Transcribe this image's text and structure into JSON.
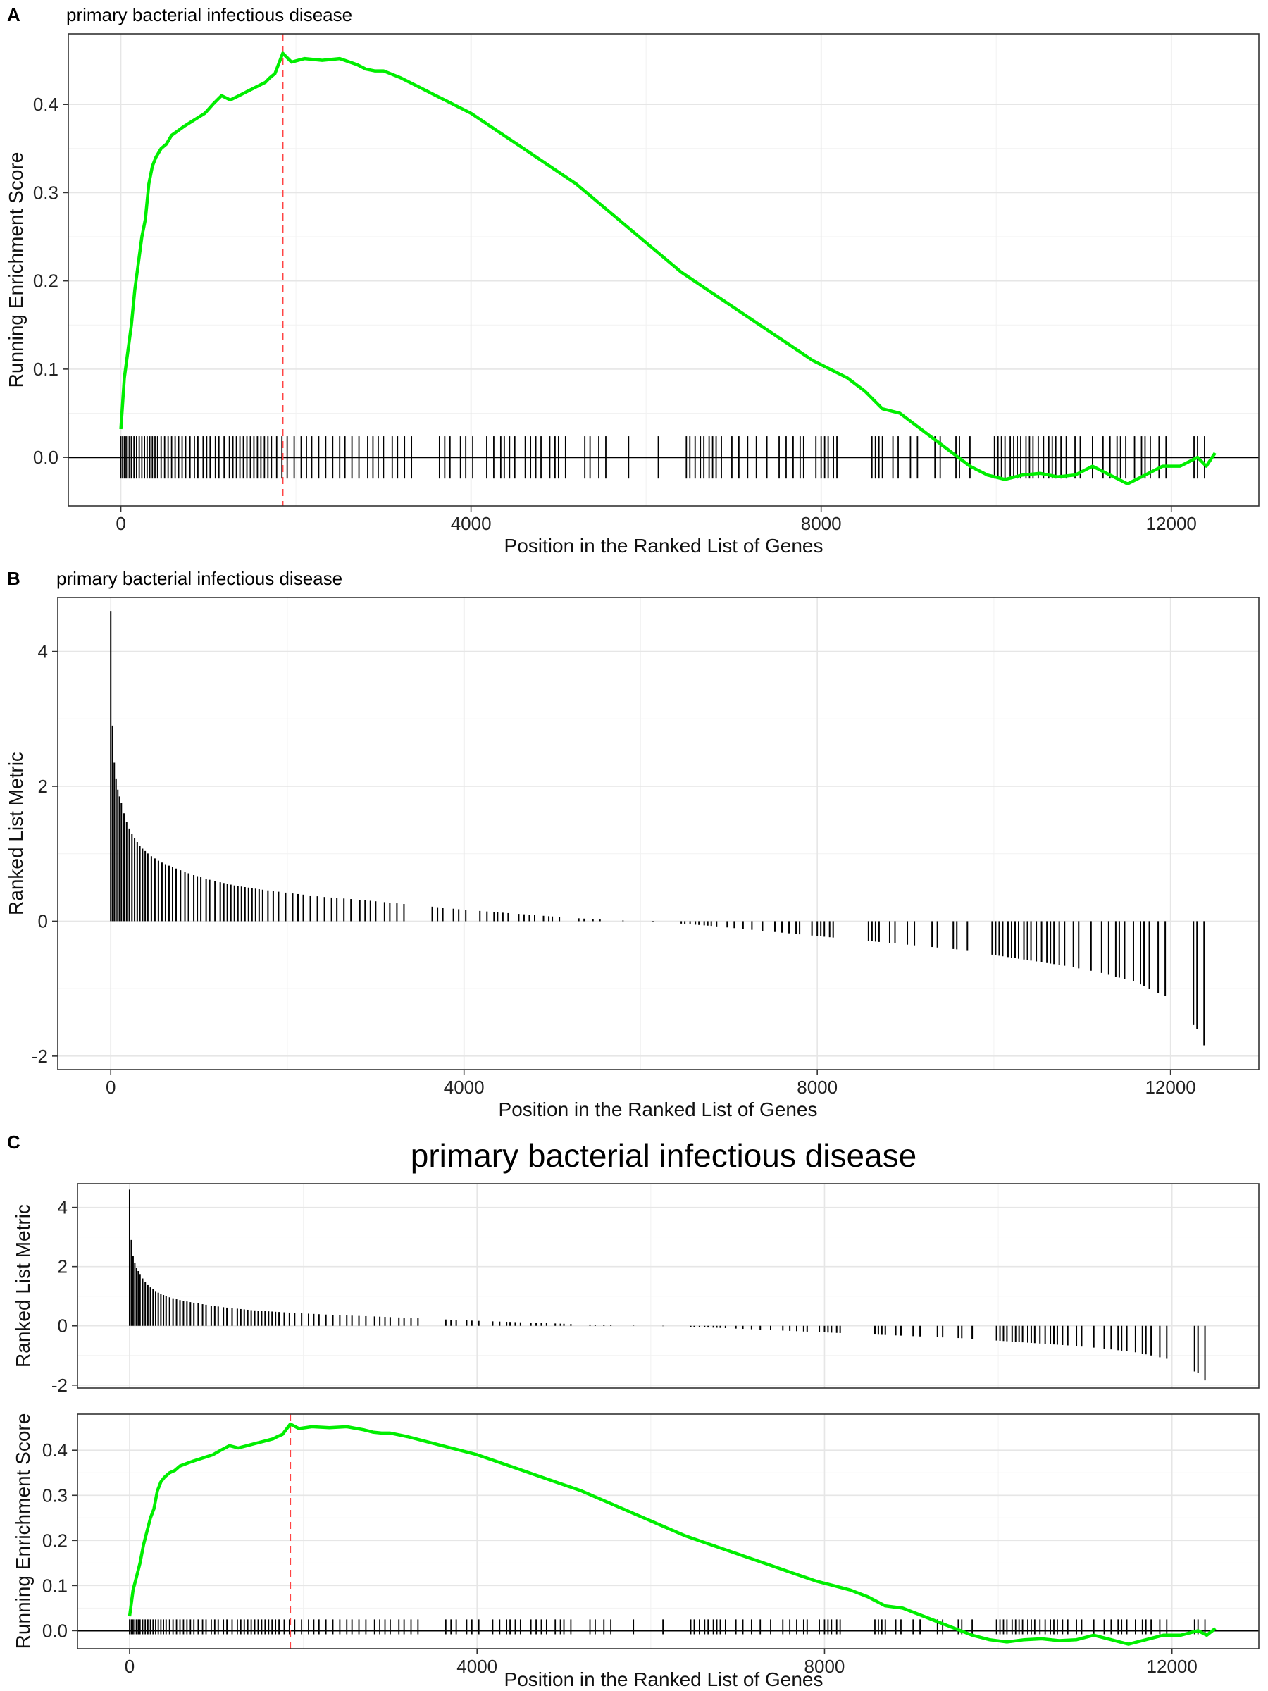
{
  "panels": {
    "a": {
      "letter": "A",
      "subtitle": "primary bacterial infectious disease",
      "xlabel": "Position in the Ranked List of Genes",
      "ylabel": "Running Enrichment Score"
    },
    "b": {
      "letter": "B",
      "subtitle": "primary bacterial infectious disease",
      "xlabel": "Position in the Ranked List of Genes",
      "ylabel": "Ranked List Metric"
    },
    "c": {
      "letter": "C",
      "title": "primary bacterial infectious disease",
      "xlabel": "Position in the Ranked List of Genes",
      "ylabel_top": "Ranked List Metric",
      "ylabel_bottom": "Running Enrichment Score"
    }
  },
  "colors": {
    "es_line": "#00ee00",
    "peak_line": "#ff4444",
    "bars": "#000000",
    "hits": "#000000"
  },
  "chart_data": [
    {
      "type": "line",
      "panel": "A",
      "subtitle": "primary bacterial infectious disease",
      "xlabel": "Position in the Ranked List of Genes",
      "ylabel": "Running Enrichment Score",
      "xlim": [
        -600,
        13000
      ],
      "ylim": [
        -0.055,
        0.48
      ],
      "xticks": [
        0,
        4000,
        8000,
        12000
      ],
      "yticks": [
        0.0,
        0.1,
        0.2,
        0.3,
        0.4
      ],
      "xtick_labels": [
        "0",
        "4000",
        "8000",
        "12000"
      ],
      "ytick_labels": [
        "0.0",
        "0.1",
        "0.2",
        "0.3",
        "0.4"
      ],
      "grid": true,
      "peak_x": 1850,
      "series": [
        {
          "x": [
            0,
            40,
            80,
            120,
            160,
            200,
            240,
            280,
            320,
            360,
            400,
            460,
            520,
            580,
            650,
            720,
            800,
            880,
            960,
            1050,
            1150,
            1250,
            1350,
            1450,
            1550,
            1650,
            1700,
            1760,
            1850,
            1950,
            2100,
            2300,
            2500,
            2700,
            2800,
            2900,
            3000,
            3200,
            3400,
            3600,
            3800,
            4000,
            4300,
            4600,
            4900,
            5200,
            5500,
            5800,
            6100,
            6400,
            6700,
            7000,
            7300,
            7600,
            7900,
            8100,
            8300,
            8500,
            8700,
            8900,
            9100,
            9300,
            9500,
            9700,
            9900,
            10100,
            10300,
            10500,
            10700,
            10900,
            11100,
            11300,
            11400,
            11500,
            11700,
            11900,
            12100,
            12300,
            12400,
            12500
          ],
          "y": [
            0.032,
            0.09,
            0.12,
            0.15,
            0.19,
            0.22,
            0.25,
            0.27,
            0.31,
            0.33,
            0.34,
            0.35,
            0.355,
            0.365,
            0.37,
            0.375,
            0.38,
            0.385,
            0.39,
            0.4,
            0.41,
            0.405,
            0.41,
            0.415,
            0.42,
            0.425,
            0.43,
            0.435,
            0.458,
            0.448,
            0.452,
            0.45,
            0.452,
            0.445,
            0.44,
            0.438,
            0.438,
            0.43,
            0.42,
            0.41,
            0.4,
            0.39,
            0.37,
            0.35,
            0.33,
            0.31,
            0.285,
            0.26,
            0.235,
            0.21,
            0.19,
            0.17,
            0.15,
            0.13,
            0.11,
            0.1,
            0.09,
            0.075,
            0.055,
            0.05,
            0.035,
            0.02,
            0.005,
            -0.01,
            -0.02,
            -0.025,
            -0.02,
            -0.018,
            -0.022,
            -0.02,
            -0.01,
            -0.02,
            -0.025,
            -0.03,
            -0.02,
            -0.01,
            -0.01,
            0.0,
            -0.01,
            0.005
          ]
        }
      ],
      "hits": [
        0,
        20,
        40,
        60,
        80,
        100,
        120,
        150,
        180,
        210,
        240,
        270,
        300,
        330,
        360,
        390,
        420,
        460,
        500,
        540,
        580,
        620,
        660,
        700,
        740,
        790,
        840,
        880,
        940,
        980,
        1020,
        1080,
        1120,
        1180,
        1240,
        1280,
        1320,
        1360,
        1400,
        1440,
        1480,
        1520,
        1560,
        1600,
        1640,
        1680,
        1720,
        1780,
        1840,
        1900,
        1980,
        2060,
        2120,
        2180,
        2260,
        2340,
        2420,
        2500,
        2560,
        2640,
        2720,
        2820,
        2880,
        2940,
        3000,
        3100,
        3160,
        3240,
        3320,
        3640,
        3700,
        3760,
        3880,
        3940,
        4020,
        4180,
        4260,
        4340,
        4380,
        4440,
        4500,
        4620,
        4680,
        4740,
        4800,
        4900,
        4960,
        5000,
        5080,
        5300,
        5360,
        5460,
        5540,
        5800,
        6140,
        6460,
        6500,
        6560,
        6620,
        6660,
        6720,
        6760,
        6800,
        6860,
        6980,
        7060,
        7160,
        7260,
        7380,
        7520,
        7600,
        7680,
        7760,
        7800,
        7940,
        8000,
        8040,
        8080,
        8140,
        8180,
        8580,
        8620,
        8660,
        8700,
        8820,
        8880,
        9020,
        9100,
        9300,
        9360,
        9540,
        9580,
        9700,
        9980,
        10020,
        10060,
        10100,
        10160,
        10200,
        10240,
        10280,
        10340,
        10380,
        10420,
        10480,
        10540,
        10600,
        10640,
        10680,
        10740,
        10800,
        10900,
        10960,
        11100,
        11220,
        11300,
        11380,
        11420,
        11480,
        11580,
        11660,
        11700,
        11760,
        11860,
        11940,
        12260,
        12300,
        12380
      ]
    },
    {
      "type": "bar",
      "panel": "B",
      "subtitle": "primary bacterial infectious disease",
      "xlabel": "Position in the Ranked List of Genes",
      "ylabel": "Ranked List Metric",
      "xlim": [
        -600,
        13000
      ],
      "ylim": [
        -2.2,
        4.8
      ],
      "xticks": [
        0,
        4000,
        8000,
        12000
      ],
      "yticks": [
        -2,
        0,
        2,
        4
      ],
      "xtick_labels": [
        "0",
        "4000",
        "8000",
        "12000"
      ],
      "ytick_labels": [
        "-2",
        "0",
        "2",
        "4"
      ],
      "grid": true,
      "metric_curve": {
        "x": [
          0,
          10,
          20,
          30,
          50,
          80,
          120,
          160,
          200,
          260,
          340,
          440,
          560,
          700,
          900,
          1100,
          1400,
          1700,
          2000,
          2400,
          2800,
          3200,
          3600,
          4000,
          4400,
          4800,
          5200,
          5600,
          6000,
          6400,
          6800,
          7200,
          7600,
          8000,
          8400,
          8800,
          9200,
          9600,
          10000,
          10400,
          10800,
          11200,
          11600,
          12000,
          12300,
          12400
        ],
        "y": [
          4.6,
          3.5,
          2.9,
          2.5,
          2.2,
          1.95,
          1.75,
          1.55,
          1.4,
          1.25,
          1.1,
          0.98,
          0.88,
          0.8,
          0.7,
          0.62,
          0.53,
          0.47,
          0.42,
          0.36,
          0.32,
          0.27,
          0.22,
          0.17,
          0.13,
          0.09,
          0.05,
          0.02,
          0.0,
          -0.03,
          -0.07,
          -0.12,
          -0.17,
          -0.22,
          -0.27,
          -0.32,
          -0.37,
          -0.42,
          -0.5,
          -0.58,
          -0.66,
          -0.76,
          -0.9,
          -1.15,
          -1.6,
          -1.9
        ]
      }
    },
    {
      "type": "bar",
      "panel": "C",
      "subplot": "top",
      "title": "primary bacterial infectious disease",
      "ylabel": "Ranked List Metric",
      "xlim": [
        -600,
        13000
      ],
      "ylim": [
        -2.1,
        4.8
      ],
      "xticks": [
        0,
        4000,
        8000,
        12000
      ],
      "yticks": [
        -2,
        0,
        2,
        4
      ],
      "ytick_labels": [
        "-2",
        "0",
        "2",
        "4"
      ],
      "grid": true
    },
    {
      "type": "line",
      "panel": "C",
      "subplot": "bottom",
      "xlabel": "Position in the Ranked List of Genes",
      "ylabel": "Running Enrichment Score",
      "xlim": [
        -600,
        13000
      ],
      "ylim": [
        -0.04,
        0.48
      ],
      "xticks": [
        0,
        4000,
        8000,
        12000
      ],
      "yticks": [
        0.0,
        0.1,
        0.2,
        0.3,
        0.4
      ],
      "xtick_labels": [
        "0",
        "4000",
        "8000",
        "12000"
      ],
      "ytick_labels": [
        "0.0",
        "0.1",
        "0.2",
        "0.3",
        "0.4"
      ],
      "grid": true,
      "peak_x": 1850
    }
  ]
}
